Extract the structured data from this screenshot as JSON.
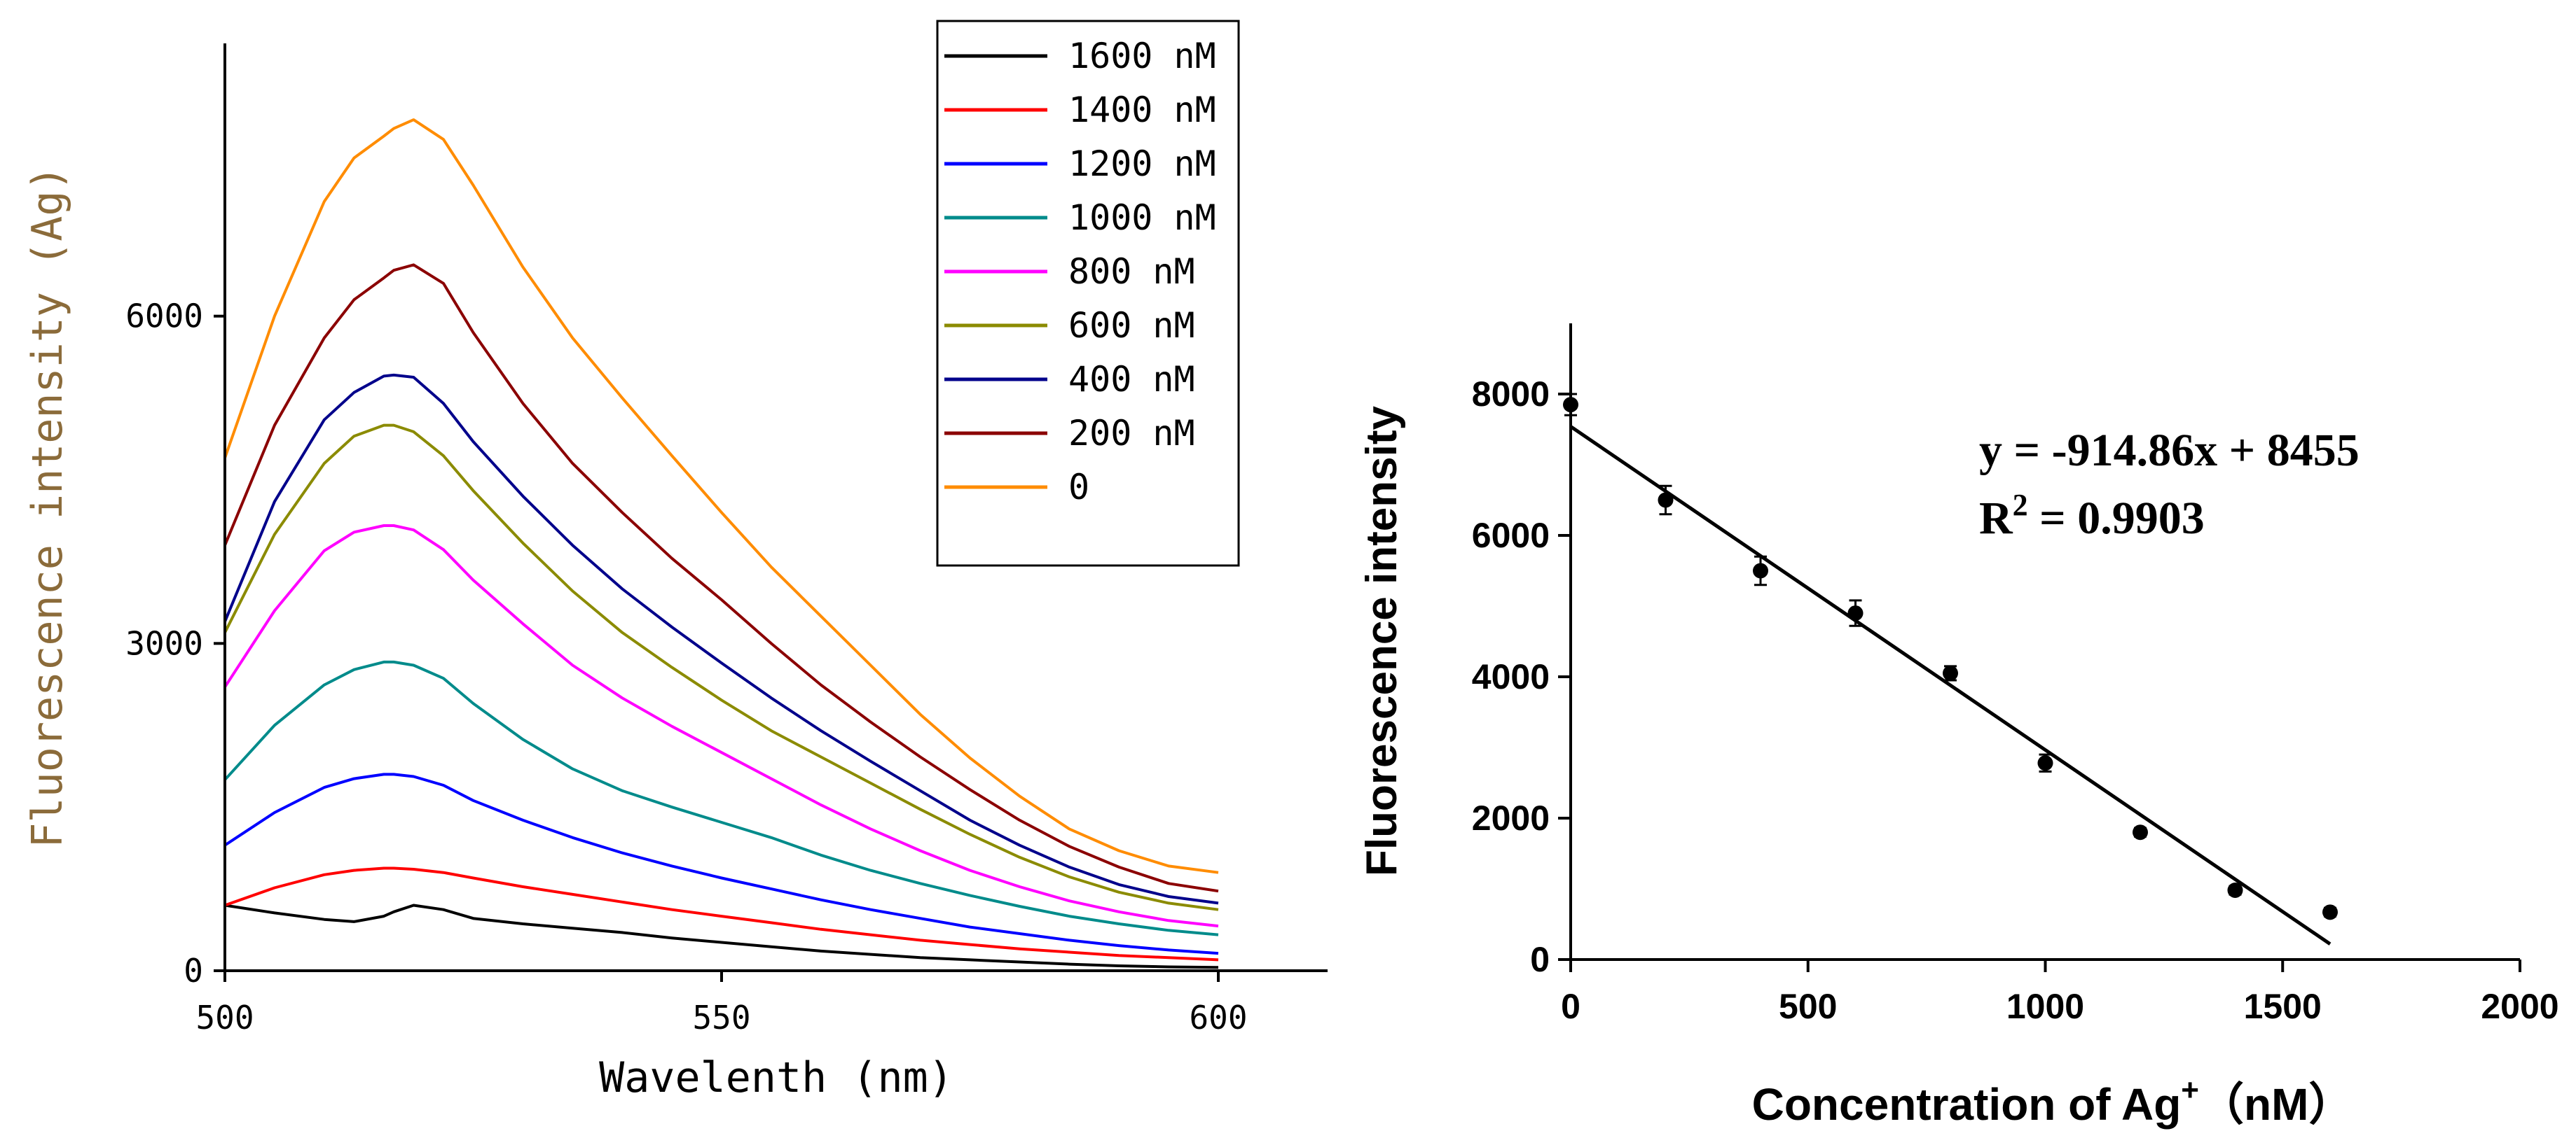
{
  "chart_data": [
    {
      "type": "line",
      "title": "",
      "xlabel": "Wavelenth (nm)",
      "ylabel": "Fluorescence intensity (Ag)",
      "xlim": [
        500,
        611
      ],
      "ylim": [
        0,
        8500
      ],
      "x_ticks": [
        500,
        550,
        600
      ],
      "y_ticks": [
        0,
        3000,
        6000
      ],
      "grid": false,
      "legend_position": "top-right",
      "x": [
        500,
        505,
        510,
        513,
        516,
        517,
        519,
        522,
        525,
        530,
        535,
        540,
        545,
        550,
        555,
        560,
        565,
        570,
        575,
        580,
        585,
        590,
        595,
        600
      ],
      "series": [
        {
          "name": "1600 nM",
          "color": "#000000",
          "values": [
            600,
            530,
            470,
            450,
            500,
            540,
            600,
            560,
            480,
            430,
            390,
            350,
            300,
            260,
            220,
            180,
            150,
            120,
            100,
            80,
            60,
            45,
            35,
            30
          ]
        },
        {
          "name": "1400 nM",
          "color": "#ff0000",
          "values": [
            600,
            760,
            880,
            920,
            940,
            940,
            930,
            900,
            850,
            770,
            700,
            630,
            560,
            500,
            440,
            380,
            330,
            280,
            240,
            200,
            170,
            140,
            120,
            100
          ]
        },
        {
          "name": "1200 nM",
          "color": "#0000ff",
          "values": [
            1150,
            1450,
            1680,
            1760,
            1800,
            1800,
            1780,
            1700,
            1560,
            1380,
            1220,
            1080,
            960,
            850,
            750,
            650,
            560,
            480,
            400,
            340,
            280,
            230,
            190,
            160
          ]
        },
        {
          "name": "1000 nM",
          "color": "#008b8b",
          "values": [
            1750,
            2250,
            2620,
            2760,
            2830,
            2830,
            2800,
            2680,
            2450,
            2120,
            1850,
            1650,
            1500,
            1360,
            1220,
            1060,
            920,
            800,
            690,
            590,
            500,
            430,
            370,
            330
          ]
        },
        {
          "name": "800 nM",
          "color": "#ff00ff",
          "values": [
            2600,
            3300,
            3850,
            4020,
            4080,
            4080,
            4040,
            3860,
            3580,
            3180,
            2800,
            2500,
            2240,
            2000,
            1760,
            1520,
            1300,
            1100,
            920,
            770,
            640,
            540,
            460,
            410
          ]
        },
        {
          "name": "600 nM",
          "color": "#8b8b00",
          "values": [
            3100,
            4000,
            4650,
            4900,
            5000,
            5000,
            4940,
            4720,
            4400,
            3920,
            3480,
            3100,
            2780,
            2480,
            2200,
            1960,
            1720,
            1480,
            1250,
            1040,
            860,
            720,
            620,
            560
          ]
        },
        {
          "name": "400 nM",
          "color": "#00008b",
          "values": [
            3200,
            4300,
            5050,
            5300,
            5450,
            5460,
            5440,
            5200,
            4850,
            4350,
            3900,
            3500,
            3150,
            2820,
            2500,
            2200,
            1920,
            1650,
            1380,
            1150,
            950,
            790,
            680,
            620
          ]
        },
        {
          "name": "200 nM",
          "color": "#8b0000",
          "values": [
            3900,
            5000,
            5800,
            6150,
            6350,
            6420,
            6470,
            6300,
            5850,
            5200,
            4650,
            4200,
            3780,
            3400,
            3000,
            2620,
            2280,
            1960,
            1660,
            1380,
            1140,
            950,
            800,
            730
          ]
        },
        {
          "name": "0",
          "color": "#ff8c00",
          "values": [
            4700,
            6000,
            7050,
            7450,
            7650,
            7720,
            7800,
            7620,
            7200,
            6450,
            5800,
            5250,
            4720,
            4200,
            3700,
            3250,
            2800,
            2350,
            1950,
            1600,
            1300,
            1100,
            960,
            900
          ]
        }
      ]
    },
    {
      "type": "scatter",
      "title": "",
      "xlabel": "Concentration of Ag",
      "xlabel_superscript": "+",
      "xlabel_unit": "（nM）",
      "ylabel": "Fluorescence intensity",
      "xlim": [
        0,
        2000
      ],
      "ylim": [
        0,
        9000
      ],
      "x_ticks": [
        "0",
        "500",
        "1000",
        "1500",
        "2000"
      ],
      "y_ticks": [
        "0",
        "2000",
        "4000",
        "6000",
        "8000"
      ],
      "grid": false,
      "points": {
        "x": [
          0,
          200,
          400,
          600,
          800,
          1000,
          1200,
          1400,
          1600
        ],
        "y": [
          7850,
          6500,
          5500,
          4900,
          4050,
          2780,
          1800,
          980,
          670
        ],
        "yerr": [
          150,
          200,
          200,
          180,
          100,
          120,
          60,
          60,
          60
        ]
      },
      "fit_line": {
        "x": [
          0,
          1600
        ],
        "y": [
          7540,
          220
        ]
      },
      "equation": "y = -914.86x + 8455",
      "r2_label": "R",
      "r2_exponent": "2",
      "r2_value": " = 0.9903"
    }
  ]
}
